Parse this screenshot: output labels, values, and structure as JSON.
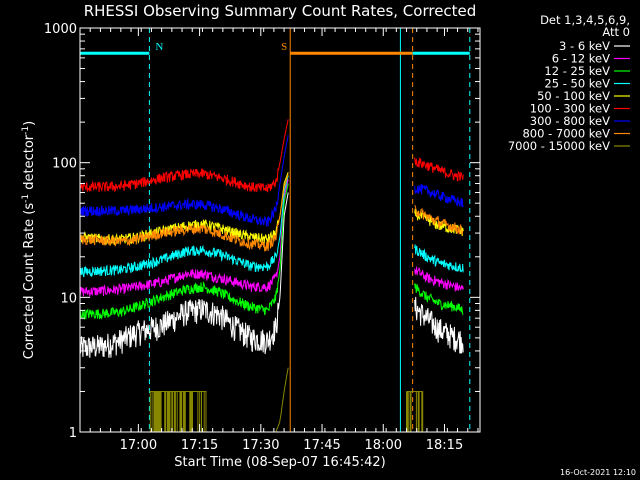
{
  "chart_data": {
    "type": "line",
    "title": "RHESSI Observing Summary Count Rates, Corrected",
    "xlabel": "Start Time (08-Sep-07 16:45:42)",
    "ylabel": "Corrected Count Rate (s⁻¹ detector⁻¹)",
    "ylabel_parts": {
      "main": "Corrected Count Rate (s",
      "sup1": "-1",
      "mid": " detector",
      "sup2": "-1",
      "end": ")"
    },
    "y_scale": "log",
    "ylim": [
      1,
      1000
    ],
    "xlim_minutes": [
      0,
      98
    ],
    "x_ticks": [
      {
        "label": "17:00",
        "minutes": 14.3
      },
      {
        "label": "17:15",
        "minutes": 29.3
      },
      {
        "label": "17:30",
        "minutes": 44.3
      },
      {
        "label": "17:45",
        "minutes": 59.3
      },
      {
        "label": "18:00",
        "minutes": 74.3
      },
      {
        "label": "18:15",
        "minutes": 89.3
      }
    ],
    "y_ticks": [
      {
        "label": "1",
        "value": 1
      },
      {
        "label": "10",
        "value": 10
      },
      {
        "label": "100",
        "value": 100
      },
      {
        "label": "1000",
        "value": 1000
      }
    ],
    "legend_header": [
      "Det 1,3,4,5,6,9,",
      "Att 0"
    ],
    "series": [
      {
        "name": "3 - 6 keV",
        "color": "#ffffff",
        "values": [
          [
            0,
            4.2
          ],
          [
            6,
            4.4
          ],
          [
            10,
            4.8
          ],
          [
            14,
            5.5
          ],
          [
            20,
            6.2
          ],
          [
            26,
            7.8
          ],
          [
            30,
            8.2
          ],
          [
            34,
            7.5
          ],
          [
            38,
            6.0
          ],
          [
            42,
            5.0
          ],
          [
            46,
            4.8
          ],
          [
            48,
            6
          ],
          [
            49,
            10
          ],
          [
            50,
            40
          ],
          [
            51,
            60
          ]
        ],
        "post": [
          [
            82,
            8.5
          ],
          [
            85,
            7
          ],
          [
            88,
            5.8
          ],
          [
            92,
            5.0
          ],
          [
            94,
            4.8
          ]
        ]
      },
      {
        "name": "6 - 12 keV",
        "color": "#ff00ff",
        "values": [
          [
            0,
            11
          ],
          [
            6,
            11.2
          ],
          [
            10,
            11.5
          ],
          [
            14,
            12
          ],
          [
            20,
            13
          ],
          [
            26,
            15
          ],
          [
            30,
            15
          ],
          [
            34,
            14
          ],
          [
            38,
            13
          ],
          [
            42,
            12
          ],
          [
            46,
            12
          ],
          [
            48,
            14
          ],
          [
            49,
            20
          ],
          [
            50,
            55
          ],
          [
            51,
            75
          ]
        ],
        "post": [
          [
            82,
            16
          ],
          [
            85,
            14
          ],
          [
            88,
            13
          ],
          [
            92,
            12
          ],
          [
            94,
            11.5
          ]
        ]
      },
      {
        "name": "12 - 25 keV",
        "color": "#00ff00",
        "values": [
          [
            0,
            7.5
          ],
          [
            6,
            7.6
          ],
          [
            10,
            7.8
          ],
          [
            14,
            8.5
          ],
          [
            20,
            10
          ],
          [
            26,
            11.5
          ],
          [
            30,
            12
          ],
          [
            34,
            11
          ],
          [
            38,
            9.5
          ],
          [
            42,
            8.5
          ],
          [
            46,
            8
          ],
          [
            48,
            10
          ],
          [
            49,
            16
          ],
          [
            50,
            50
          ],
          [
            51,
            70
          ]
        ],
        "post": [
          [
            82,
            12
          ],
          [
            85,
            10
          ],
          [
            88,
            9
          ],
          [
            92,
            8.5
          ],
          [
            94,
            8
          ]
        ]
      },
      {
        "name": "25 - 50 keV",
        "color": "#00ffff",
        "values": [
          [
            0,
            15.5
          ],
          [
            6,
            15.8
          ],
          [
            10,
            16
          ],
          [
            14,
            17
          ],
          [
            20,
            19
          ],
          [
            26,
            22
          ],
          [
            30,
            22.5
          ],
          [
            34,
            21
          ],
          [
            38,
            19
          ],
          [
            42,
            17
          ],
          [
            46,
            17
          ],
          [
            48,
            20
          ],
          [
            49,
            28
          ],
          [
            50,
            60
          ],
          [
            51,
            80
          ]
        ],
        "post": [
          [
            82,
            23
          ],
          [
            85,
            20
          ],
          [
            88,
            18
          ],
          [
            92,
            17
          ],
          [
            94,
            16.5
          ]
        ]
      },
      {
        "name": "50 - 100 keV",
        "color": "#ffff00",
        "values": [
          [
            0,
            28
          ],
          [
            6,
            27
          ],
          [
            10,
            27
          ],
          [
            14,
            28
          ],
          [
            20,
            31
          ],
          [
            26,
            34
          ],
          [
            30,
            35
          ],
          [
            34,
            33
          ],
          [
            38,
            30
          ],
          [
            42,
            28
          ],
          [
            46,
            27
          ],
          [
            48,
            30
          ],
          [
            49,
            40
          ],
          [
            50,
            70
          ],
          [
            51,
            85
          ]
        ],
        "post": [
          [
            82,
            42
          ],
          [
            85,
            38
          ],
          [
            88,
            34
          ],
          [
            92,
            32
          ],
          [
            94,
            31
          ]
        ]
      },
      {
        "name": "100 - 300 keV",
        "color": "#ff0000",
        "values": [
          [
            0,
            66
          ],
          [
            6,
            66
          ],
          [
            10,
            67
          ],
          [
            14,
            70
          ],
          [
            20,
            77
          ],
          [
            26,
            82
          ],
          [
            30,
            83
          ],
          [
            34,
            78
          ],
          [
            38,
            72
          ],
          [
            42,
            66
          ],
          [
            46,
            64
          ],
          [
            48,
            72
          ],
          [
            49,
            100
          ],
          [
            50,
            150
          ],
          [
            51,
            210
          ]
        ],
        "post": [
          [
            82,
            103
          ],
          [
            85,
            96
          ],
          [
            88,
            88
          ],
          [
            92,
            80
          ],
          [
            94,
            78
          ]
        ]
      },
      {
        "name": "300 - 800 keV",
        "color": "#0000ff",
        "values": [
          [
            0,
            44
          ],
          [
            6,
            44
          ],
          [
            10,
            44
          ],
          [
            14,
            45
          ],
          [
            20,
            47
          ],
          [
            26,
            49
          ],
          [
            30,
            49
          ],
          [
            34,
            46
          ],
          [
            38,
            42
          ],
          [
            42,
            38
          ],
          [
            46,
            36
          ],
          [
            48,
            45
          ],
          [
            49,
            70
          ],
          [
            50,
            110
          ],
          [
            51,
            160
          ]
        ],
        "post": [
          [
            82,
            65
          ],
          [
            85,
            62
          ],
          [
            88,
            57
          ],
          [
            92,
            52
          ],
          [
            94,
            50
          ]
        ]
      },
      {
        "name": "800 - 7000 keV",
        "color": "#ff8800",
        "values": [
          [
            0,
            27
          ],
          [
            6,
            26.5
          ],
          [
            10,
            26
          ],
          [
            14,
            27
          ],
          [
            20,
            30
          ],
          [
            26,
            32
          ],
          [
            30,
            32.5
          ],
          [
            34,
            30
          ],
          [
            38,
            27
          ],
          [
            42,
            25
          ],
          [
            46,
            24
          ],
          [
            48,
            28
          ],
          [
            49,
            40
          ],
          [
            50,
            65
          ],
          [
            51,
            82
          ]
        ],
        "post": [
          [
            82,
            45
          ],
          [
            85,
            40
          ],
          [
            88,
            36
          ],
          [
            92,
            33
          ],
          [
            94,
            31
          ]
        ]
      },
      {
        "name": "7000 - 15000 keV",
        "color": "#888800",
        "values": [
          [
            48,
            1
          ],
          [
            49,
            1.2
          ],
          [
            50,
            2
          ],
          [
            51,
            3
          ]
        ],
        "post": [
          [
            82,
            1
          ],
          [
            84,
            2
          ],
          [
            85,
            1
          ]
        ]
      }
    ],
    "olive_spikes_minutes": [
      [
        17,
        31
      ],
      [
        80,
        84
      ]
    ],
    "vertical_lines": [
      {
        "minutes": 0,
        "color": "#00ffff",
        "style": "solid"
      },
      {
        "minutes": 17,
        "color": "#00ffff",
        "style": "dashed"
      },
      {
        "minutes": 51.5,
        "color": "#ff8800",
        "style": "solid"
      },
      {
        "minutes": 78.5,
        "color": "#00ffff",
        "style": "solid"
      },
      {
        "minutes": 81.5,
        "color": "#ff8800",
        "style": "dashed"
      },
      {
        "minutes": 95.5,
        "color": "#00ffff",
        "style": "dashed"
      }
    ],
    "markers": [
      {
        "label": "N",
        "color": "#00ffff",
        "from_min": 0,
        "to_min": 17
      },
      {
        "label": "S",
        "color": "#ff8800",
        "from_min": 51.5,
        "to_min": 81.5
      },
      {
        "label": "",
        "color": "#00ffff",
        "from_min": 81.5,
        "to_min": 95.5
      }
    ],
    "marker_level": 650,
    "grid": false,
    "legend_position": "right"
  },
  "footer": {
    "date_stamp": "16-Oct-2021 12:10"
  }
}
